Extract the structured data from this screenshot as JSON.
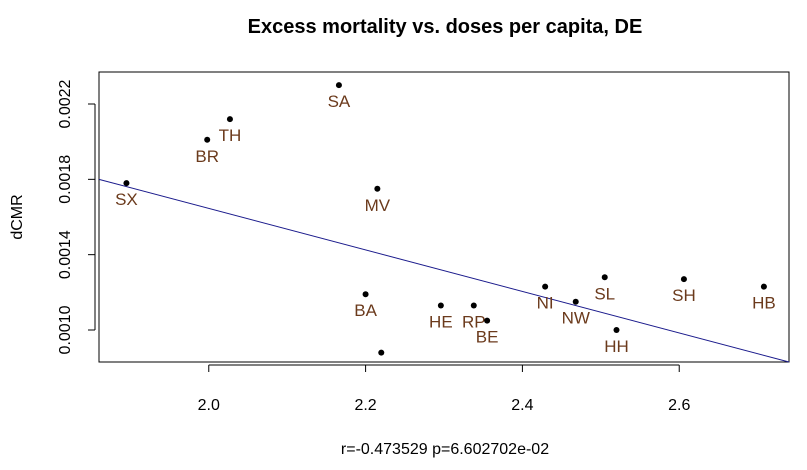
{
  "chart_data": {
    "type": "scatter",
    "title": "Excess mortality vs. doses per capita, DE",
    "xlabel": "",
    "ylabel": "dCMR",
    "subtitle": "r=-0.473529  p=6.602702e-02",
    "xlim": [
      1.86,
      2.74
    ],
    "ylim": [
      0.00083,
      0.00237
    ],
    "x_ticks": [
      "2.0",
      "2.2",
      "2.4",
      "2.6"
    ],
    "x_tick_values": [
      2.0,
      2.2,
      2.4,
      2.6
    ],
    "y_ticks": [
      "0.0010",
      "0.0014",
      "0.0018",
      "0.0022"
    ],
    "y_tick_values": [
      0.001,
      0.0014,
      0.0018,
      0.0022
    ],
    "grid": false,
    "points": [
      {
        "label": "SX",
        "x": 1.895,
        "y": 0.00178
      },
      {
        "label": "BR",
        "x": 1.998,
        "y": 0.00201
      },
      {
        "label": "TH",
        "x": 2.027,
        "y": 0.00212
      },
      {
        "label": "SA",
        "x": 2.166,
        "y": 0.0023
      },
      {
        "label": "MV",
        "x": 2.215,
        "y": 0.00175
      },
      {
        "label": "BA",
        "x": 2.2,
        "y": 0.00119
      },
      {
        "label": "",
        "x": 2.22,
        "y": 0.00088
      },
      {
        "label": "HE",
        "x": 2.296,
        "y": 0.00113
      },
      {
        "label": "RP",
        "x": 2.338,
        "y": 0.00113
      },
      {
        "label": "BE",
        "x": 2.355,
        "y": 0.00105
      },
      {
        "label": "NI",
        "x": 2.429,
        "y": 0.00123
      },
      {
        "label": "NW",
        "x": 2.468,
        "y": 0.00115
      },
      {
        "label": "SL",
        "x": 2.505,
        "y": 0.00128
      },
      {
        "label": "HH",
        "x": 2.52,
        "y": 0.001
      },
      {
        "label": "SH",
        "x": 2.606,
        "y": 0.00127
      },
      {
        "label": "HB",
        "x": 2.708,
        "y": 0.00123
      }
    ],
    "regression_line": {
      "x": [
        1.86,
        2.74
      ],
      "y": [
        0.0018,
        0.00083
      ]
    },
    "colors": {
      "points": "#000000",
      "labels": "#6b3a1c",
      "line": "#1a1a8c",
      "frame": "#000000"
    }
  }
}
